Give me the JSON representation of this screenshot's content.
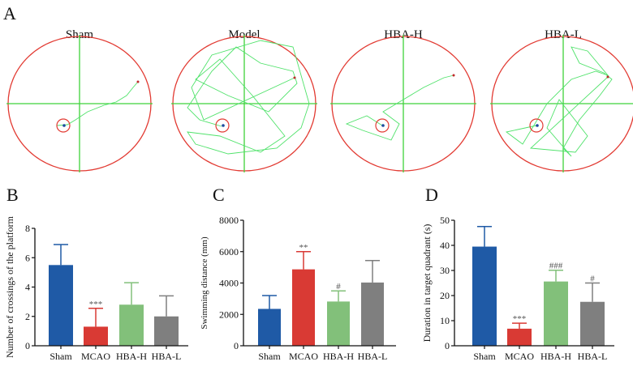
{
  "panel_a": {
    "label": "A",
    "groups": [
      "Sham",
      "Model",
      "HBA-H",
      "HBA-L"
    ],
    "colors": {
      "pool": "#e23a32",
      "axes": "#3fd23a",
      "path": "#4fe26a",
      "platform": "#e23a32"
    }
  },
  "chart_data": [
    {
      "panel": "B",
      "type": "bar",
      "categories": [
        "Sham",
        "MCAO",
        "HBA-H",
        "HBA-L"
      ],
      "values": [
        5.5,
        1.3,
        2.8,
        2.0
      ],
      "error_upper": [
        6.9,
        2.55,
        4.3,
        3.4
      ],
      "annotations": [
        "",
        "***",
        "",
        ""
      ],
      "ylabel": "Number of crossings of the platform",
      "ylim": [
        0,
        8
      ],
      "yticks": [
        0,
        2,
        4,
        6,
        8
      ],
      "grid": false,
      "colors": [
        "#1f5aa6",
        "#d93a34",
        "#82c07a",
        "#7f7f7f"
      ]
    },
    {
      "panel": "C",
      "type": "bar",
      "categories": [
        "Sham",
        "MCAO",
        "HBA-H",
        "HBA-L"
      ],
      "values": [
        2350,
        4870,
        2820,
        4030
      ],
      "error_upper": [
        3200,
        6000,
        3500,
        5430
      ],
      "annotations": [
        "",
        "**",
        "#",
        ""
      ],
      "ylabel": "Swimming distance (mm)",
      "ylim": [
        0,
        8000
      ],
      "yticks": [
        0,
        2000,
        4000,
        6000,
        8000
      ],
      "grid": false,
      "colors": [
        "#1f5aa6",
        "#d93a34",
        "#82c07a",
        "#7f7f7f"
      ]
    },
    {
      "panel": "D",
      "type": "bar",
      "categories": [
        "Sham",
        "MCAO",
        "HBA-H",
        "HBA-L"
      ],
      "values": [
        39.5,
        6.8,
        25.6,
        17.5
      ],
      "error_upper": [
        47.5,
        9.0,
        30.1,
        25.0
      ],
      "annotations": [
        "",
        "***",
        "###",
        "#"
      ],
      "ylabel": "Duration in target quadrant (s)",
      "ylim": [
        0,
        50
      ],
      "yticks": [
        0,
        10,
        20,
        30,
        40,
        50
      ],
      "grid": false,
      "colors": [
        "#1f5aa6",
        "#d93a34",
        "#82c07a",
        "#7f7f7f"
      ]
    }
  ]
}
